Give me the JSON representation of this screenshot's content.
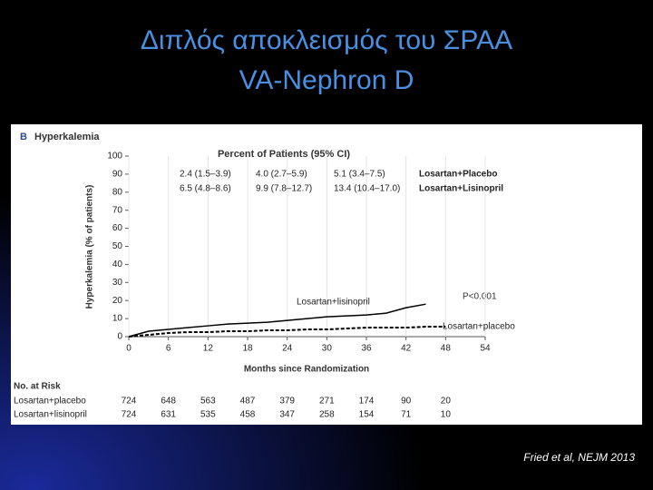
{
  "slide": {
    "title_line1": "Διπλός αποκλεισμός του ΣΡΑΑ",
    "title_line2": "VA-Nephron D",
    "citation": "Fried  et al, NEJM 2013"
  },
  "chart_data": {
    "type": "line",
    "panel_label": "B",
    "title": "Hyperkalemia",
    "table_title": "Percent of Patients (95% CI)",
    "x_label": "Months since Randomization",
    "y_label": "Hyperkalemia (% of patients)",
    "x": [
      0,
      3,
      6,
      9,
      12,
      15,
      18,
      21,
      24,
      27,
      30,
      33,
      36,
      39,
      42,
      45,
      48
    ],
    "series": [
      {
        "name": "Losartan+lisinopril",
        "color": "#000000",
        "dashed": false,
        "values": [
          0,
          3,
          4,
          5,
          6,
          7,
          7.5,
          8,
          9,
          10,
          11,
          11.5,
          12,
          13,
          16,
          18,
          null
        ]
      },
      {
        "name": "Losartan+placebo",
        "color": "#000000",
        "dashed": true,
        "values": [
          0,
          1,
          2,
          2.5,
          2.5,
          3,
          3,
          3.5,
          3.5,
          4,
          4,
          4.5,
          5,
          5,
          5,
          5.5,
          5.5
        ]
      }
    ],
    "xlim": [
      0,
      54
    ],
    "xticks": [
      0,
      6,
      12,
      18,
      24,
      30,
      36,
      42,
      48,
      54
    ],
    "ylim": [
      0,
      100
    ],
    "yticks": [
      0,
      10,
      20,
      30,
      40,
      50,
      60,
      70,
      80,
      90,
      100
    ],
    "ci_table": {
      "rows": [
        {
          "name": "Losartan+Placebo",
          "cells": [
            "2.4 (1.5–3.9)",
            "4.0 (2.7–5.9)",
            "5.1 (3.4–7.5)"
          ]
        },
        {
          "name": "Losartan+Lisinopril",
          "cells": [
            "6.5 (4.8–8.6)",
            "9.9 (7.8–12.7)",
            "13.4 (10.4–17.0)"
          ]
        }
      ]
    },
    "annotation": "P<0.001",
    "risk_table": {
      "title": "No. at Risk",
      "rows": [
        {
          "name": "Losartan+placebo",
          "values": [
            724,
            648,
            563,
            487,
            379,
            271,
            174,
            90,
            20
          ]
        },
        {
          "name": "Losartan+lisinopril",
          "values": [
            724,
            631,
            535,
            458,
            347,
            258,
            154,
            71,
            10
          ]
        }
      ]
    }
  }
}
